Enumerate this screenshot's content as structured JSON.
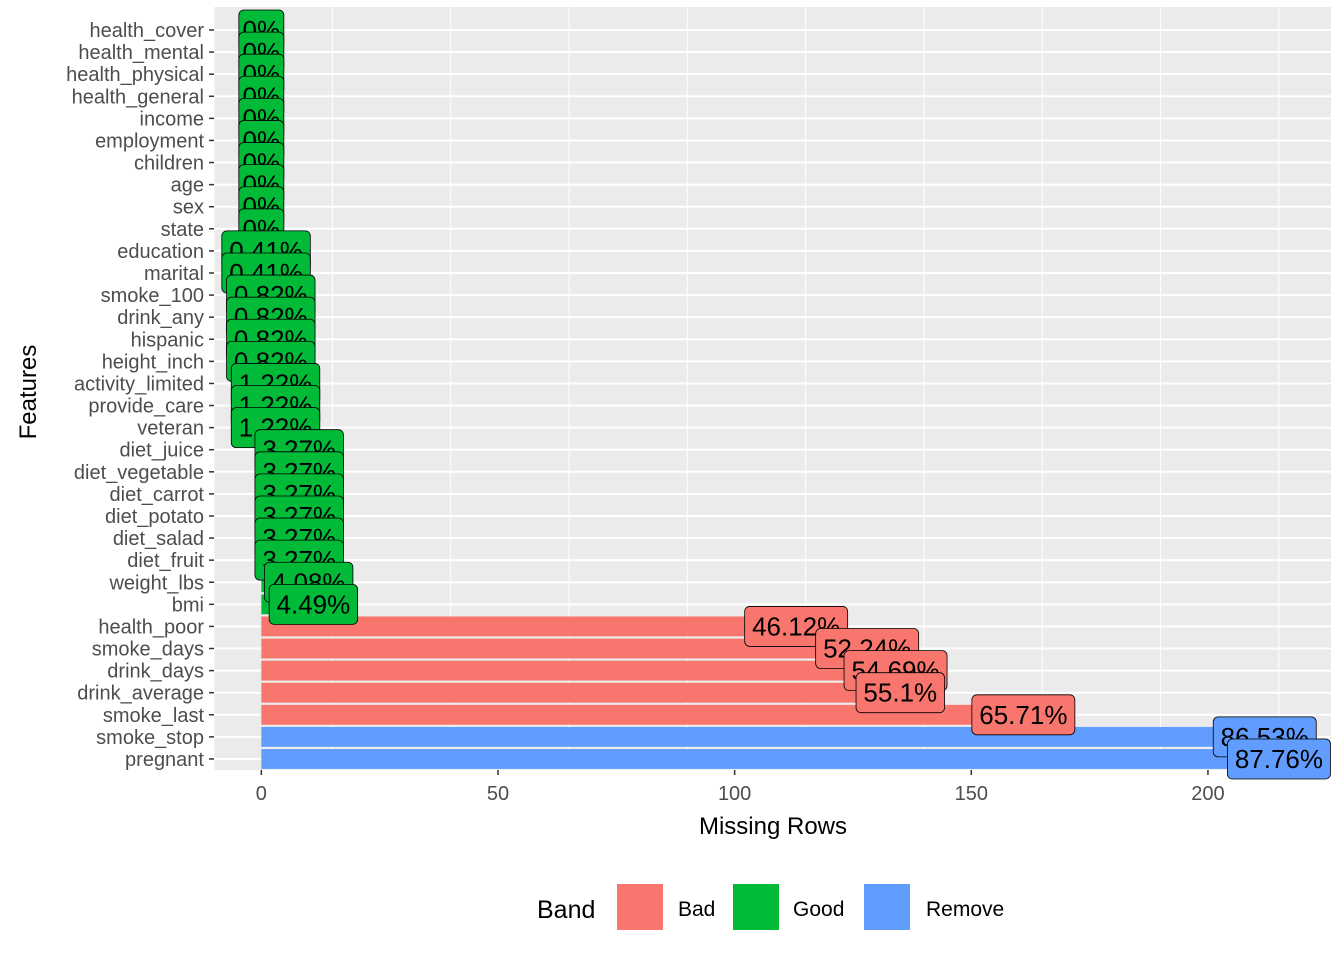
{
  "chart_data": {
    "type": "bar",
    "orientation": "horizontal",
    "title": "",
    "xlabel": "Missing Rows",
    "ylabel": "Features",
    "xlim": [
      -10,
      226
    ],
    "xticks": [
      0,
      50,
      100,
      150,
      200
    ],
    "grid": true,
    "legend": {
      "title": "Band",
      "position": "bottom"
    },
    "band_colors": {
      "Bad": "#F8766D",
      "Good": "#00BA38",
      "Remove": "#619CFF"
    },
    "categories": [
      "health_cover",
      "health_mental",
      "health_physical",
      "health_general",
      "income",
      "employment",
      "children",
      "age",
      "sex",
      "state",
      "education",
      "marital",
      "smoke_100",
      "drink_any",
      "hispanic",
      "height_inch",
      "activity_limited",
      "provide_care",
      "veteran",
      "diet_juice",
      "diet_vegetable",
      "diet_carrot",
      "diet_potato",
      "diet_salad",
      "diet_fruit",
      "weight_lbs",
      "bmi",
      "health_poor",
      "smoke_days",
      "drink_days",
      "drink_average",
      "smoke_last",
      "smoke_stop",
      "pregnant"
    ],
    "values": [
      0,
      0,
      0,
      0,
      0,
      0,
      0,
      0,
      0,
      0,
      1,
      1,
      2,
      2,
      2,
      2,
      3,
      3,
      3,
      8,
      8,
      8,
      8,
      8,
      8,
      10,
      11,
      113,
      128,
      134,
      135,
      161,
      212,
      215
    ],
    "labels": [
      "0%",
      "0%",
      "0%",
      "0%",
      "0%",
      "0%",
      "0%",
      "0%",
      "0%",
      "0%",
      "0.41%",
      "0.41%",
      "0.82%",
      "0.82%",
      "0.82%",
      "0.82%",
      "1.22%",
      "1.22%",
      "1.22%",
      "3.27%",
      "3.27%",
      "3.27%",
      "3.27%",
      "3.27%",
      "3.27%",
      "4.08%",
      "4.49%",
      "46.12%",
      "52.24%",
      "54.69%",
      "55.1%",
      "65.71%",
      "86.53%",
      "87.76%"
    ],
    "bands": [
      "Good",
      "Good",
      "Good",
      "Good",
      "Good",
      "Good",
      "Good",
      "Good",
      "Good",
      "Good",
      "Good",
      "Good",
      "Good",
      "Good",
      "Good",
      "Good",
      "Good",
      "Good",
      "Good",
      "Good",
      "Good",
      "Good",
      "Good",
      "Good",
      "Good",
      "Good",
      "Good",
      "Bad",
      "Bad",
      "Bad",
      "Bad",
      "Bad",
      "Remove",
      "Remove"
    ]
  }
}
